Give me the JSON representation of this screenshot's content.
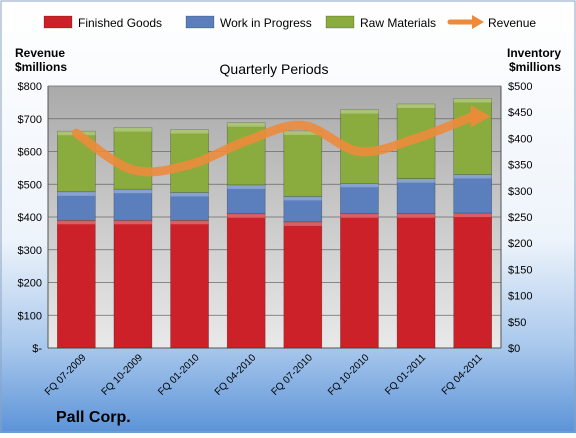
{
  "chart_data": {
    "type": "bar",
    "stacked": true,
    "title": "Quarterly Periods",
    "company": "Pall Corp.",
    "left_axis": {
      "label_line1": "Revenue",
      "label_line2": "$millions",
      "range": [
        0,
        800
      ],
      "ticks": [
        {
          "value": 0,
          "label": "$-"
        },
        {
          "value": 100,
          "label": "$100"
        },
        {
          "value": 200,
          "label": "$200"
        },
        {
          "value": 300,
          "label": "$300"
        },
        {
          "value": 400,
          "label": "$400"
        },
        {
          "value": 500,
          "label": "$500"
        },
        {
          "value": 600,
          "label": "$600"
        },
        {
          "value": 700,
          "label": "$700"
        },
        {
          "value": 800,
          "label": "$800"
        }
      ]
    },
    "right_axis": {
      "label_line1": "Inventory",
      "label_line2": "$millions",
      "range": [
        0,
        500
      ],
      "ticks": [
        {
          "value": 0,
          "label": "$0"
        },
        {
          "value": 50,
          "label": "$50"
        },
        {
          "value": 100,
          "label": "$100"
        },
        {
          "value": 150,
          "label": "$150"
        },
        {
          "value": 200,
          "label": "$200"
        },
        {
          "value": 250,
          "label": "$250"
        },
        {
          "value": 300,
          "label": "$300"
        },
        {
          "value": 350,
          "label": "$350"
        },
        {
          "value": 400,
          "label": "$400"
        },
        {
          "value": 450,
          "label": "$450"
        },
        {
          "value": 500,
          "label": "$500"
        }
      ]
    },
    "categories": [
      "FQ 07-2009",
      "FQ 10-2009",
      "FQ 01-2010",
      "FQ 04-2010",
      "FQ 07-2010",
      "FQ 10-2010",
      "FQ 01-2011",
      "FQ 04-2011"
    ],
    "series": [
      {
        "name": "Finished Goods",
        "axis": "left",
        "color": "#cc2128",
        "values": [
          390,
          390,
          390,
          410,
          385,
          410,
          410,
          412
        ]
      },
      {
        "name": "Work in Progress",
        "axis": "left",
        "color": "#5b7fbd",
        "values": [
          87,
          95,
          85,
          88,
          78,
          93,
          107,
          118
        ]
      },
      {
        "name": "Raw Materials",
        "axis": "left",
        "color": "#8aac3f",
        "values": [
          185,
          188,
          192,
          190,
          200,
          225,
          228,
          232
        ]
      },
      {
        "name": "Revenue",
        "axis": "right",
        "type": "line",
        "color": "#ee8a3a",
        "values": [
          410,
          340,
          350,
          395,
          425,
          375,
          400,
          442
        ]
      }
    ],
    "legend_position": "top",
    "grid": true
  }
}
